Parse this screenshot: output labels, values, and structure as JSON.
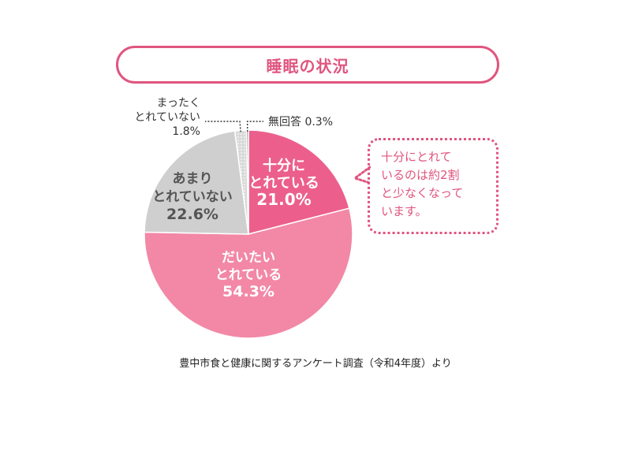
{
  "title": "睡眠の状況",
  "chart_data": {
    "type": "pie",
    "title": "睡眠の状況",
    "slices": [
      {
        "label_lines": [
          "十分に",
          "とれている"
        ],
        "value": 21.0,
        "value_label": "21.0%",
        "color": "#ec5f8c",
        "text_color": "#ffffff"
      },
      {
        "label_lines": [
          "だいたい",
          "とれている"
        ],
        "value": 54.3,
        "value_label": "54.3%",
        "color": "#f288a6",
        "text_color": "#ffffff"
      },
      {
        "label_lines": [
          "あまり",
          "とれていない"
        ],
        "value": 22.6,
        "value_label": "22.6%",
        "color": "#cfcfd0",
        "text_color": "#555555"
      },
      {
        "label_lines": [
          "まったく",
          "とれていない"
        ],
        "value": 1.8,
        "value_label": "1.8%",
        "color": "#d6d6d6",
        "text_color": "#333333",
        "pattern": "dots"
      },
      {
        "label_lines": [
          "無回答"
        ],
        "value": 0.3,
        "value_label": "0.3%",
        "color": "#8f8f8f",
        "text_color": "#333333"
      }
    ]
  },
  "callout": {
    "lines": [
      "十分にとれて",
      "いるのは約2割",
      "と少なくなって",
      "います。"
    ]
  },
  "source": "豊中市食と健康に関するアンケート調査（令和4年度）より",
  "colors": {
    "accent": "#e0557f"
  }
}
